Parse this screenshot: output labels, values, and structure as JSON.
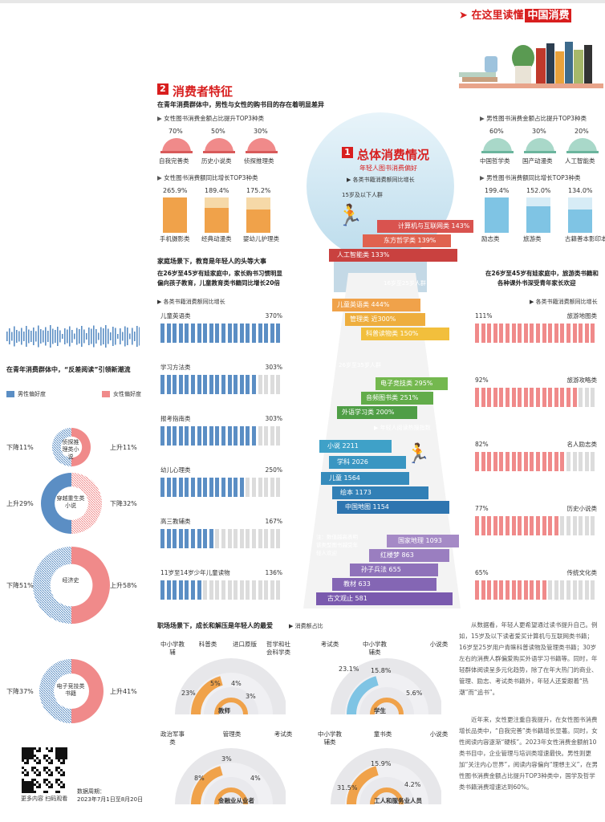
{
  "brand": {
    "prefix": "在这里读懂",
    "highlight": "中国消费"
  },
  "section1": {
    "num": "1",
    "title": "总体消费情况",
    "subtitle": "年轻人图书消费偏好",
    "legend": "各类书籍消费额同比增长"
  },
  "section2": {
    "num": "2",
    "title": "消费者特征",
    "intro": "在青年消费群体中，男性与女性的购书目的存在着明显差异"
  },
  "female_top3": {
    "title": "女性图书消费金额占比提升TOP3种类",
    "items": [
      {
        "pct": "70%",
        "label": "自我完善类"
      },
      {
        "pct": "50%",
        "label": "历史小说类"
      },
      {
        "pct": "30%",
        "label": "侦探推理类"
      }
    ]
  },
  "male_top3": {
    "title": "男性图书消费金额占比提升TOP3种类",
    "items": [
      {
        "pct": "60%",
        "label": "中国哲学类"
      },
      {
        "pct": "30%",
        "label": "国产动漫类"
      },
      {
        "pct": "20%",
        "label": "人工智能类"
      }
    ]
  },
  "female_growth": {
    "title": "女性图书消费额同比增长TOP3种类",
    "items": [
      {
        "pct": "265.9%",
        "label": "手机摄影类",
        "fill": 1.0
      },
      {
        "pct": "189.4%",
        "label": "经典动漫类",
        "fill": 0.71
      },
      {
        "pct": "175.2%",
        "label": "婴幼儿护理类",
        "fill": 0.66
      }
    ]
  },
  "male_growth": {
    "title": "男性图书消费额同比增长TOP3种类",
    "items": [
      {
        "pct": "199.4%",
        "label": "励志类",
        "fill": 1.0
      },
      {
        "pct": "152.0%",
        "label": "旅游类",
        "fill": 0.76
      },
      {
        "pct": "134.0%",
        "label": "古籍善本影印本",
        "fill": 0.67
      }
    ]
  },
  "family": {
    "line1": "家庭场景下，教育是年轻人的头等大事",
    "line2": "在26岁至45岁有娃家庭中，家长购书习惯明显",
    "line3": "偏向孩子教育，儿童教育类书籍同比增长20倍",
    "legend": "各类书籍消费额同比增长",
    "items": [
      {
        "label": "儿童英语类",
        "pct": "370%",
        "fill": 1.0
      },
      {
        "label": "学习方法类",
        "pct": "303%",
        "fill": 0.82
      },
      {
        "label": "报考指南类",
        "pct": "303%",
        "fill": 0.82
      },
      {
        "label": "幼儿心理类",
        "pct": "250%",
        "fill": 0.68
      },
      {
        "label": "高三教辅类",
        "pct": "167%",
        "fill": 0.45
      },
      {
        "label": "11岁至14岁少年儿童读物",
        "pct": "136%",
        "fill": 0.37
      }
    ]
  },
  "travel": {
    "line1": "在26岁至45岁有娃家庭中，旅游类书籍和",
    "line2": "各种课外书深受青年家长欢迎",
    "legend": "各类书籍消费额同比增长",
    "items": [
      {
        "label": "旅游地图类",
        "pct": "111%",
        "fill": 1.0
      },
      {
        "label": "旅游攻略类",
        "pct": "92%",
        "fill": 0.83
      },
      {
        "label": "名人励志类",
        "pct": "82%",
        "fill": 0.74
      },
      {
        "label": "历史小说类",
        "pct": "77%",
        "fill": 0.69
      },
      {
        "label": "传统文化类",
        "pct": "65%",
        "fill": 0.59
      }
    ]
  },
  "keyhole": {
    "age1": "15岁及以下人群",
    "top_steps": [
      {
        "label": "计算机与互联网类",
        "pct": "143%"
      },
      {
        "label": "东方哲学类",
        "pct": "139%"
      },
      {
        "label": "人工智能类",
        "pct": "133%"
      }
    ],
    "age2": "16岁至25岁人群",
    "mid_steps": [
      {
        "label": "儿童英语类",
        "pct": "444%"
      },
      {
        "label": "管理类",
        "pct": "近300%"
      },
      {
        "label": "科普读物类",
        "pct": "150%"
      }
    ],
    "age3": "26岁至35岁人群",
    "green_steps": [
      {
        "label": "电子竞技类",
        "pct": "295%"
      },
      {
        "label": "音频图书类",
        "pct": "251%"
      },
      {
        "label": "外语学习类",
        "pct": "200%"
      }
    ],
    "heat_legend": "年轻人阅读热搜指数",
    "blue_steps": [
      {
        "label": "小说",
        "val": "2211"
      },
      {
        "label": "学科",
        "val": "2026"
      },
      {
        "label": "儿童",
        "val": "1564"
      },
      {
        "label": "绘本",
        "val": "1173"
      },
      {
        "label": "中国地图",
        "val": "1154"
      }
    ],
    "note": "注：数值越高表明该类型图书越受年轻人欢迎",
    "purple_steps": [
      {
        "label": "国家地理",
        "val": "1093"
      },
      {
        "label": "红楼梦",
        "val": "863"
      },
      {
        "label": "孙子兵法",
        "val": "655"
      },
      {
        "label": "教材",
        "val": "633"
      },
      {
        "label": "古文观止",
        "val": "581"
      }
    ]
  },
  "reverse": {
    "title": "在青年消费群体中，“反差阅读”引领新潮流",
    "male_legend": "男性偏好度",
    "female_legend": "女性偏好度",
    "donuts": [
      {
        "center": "侦探推理类小说",
        "left": "下降11%",
        "right": "上升11%"
      },
      {
        "center": "穿越重生类小说",
        "left": "上升29%",
        "right": "下降32%"
      },
      {
        "center": "经济史",
        "left": "下降51%",
        "right": "上升58%"
      },
      {
        "center": "电子竞技类书籍",
        "left": "下降37%",
        "right": "上升41%"
      }
    ]
  },
  "workplace": {
    "title": "职场场景下，成长和解压是年轻人的最爱",
    "legend": "消费额占比",
    "groups": [
      {
        "name": "教师",
        "cats": [
          "中小学教辅",
          "科普类",
          "进口原版",
          "哲学和社会科学类"
        ],
        "vals": [
          "23%",
          "5%",
          "4%",
          "3%"
        ]
      },
      {
        "name": "学生",
        "cats": [
          "考试类",
          "中小学教辅类",
          "小说类"
        ],
        "vals": [
          "23.1%",
          "15.8%",
          "5.6%"
        ]
      },
      {
        "name": "金融业从业者",
        "cats": [
          "政治军事类",
          "管理类",
          "考试类"
        ],
        "vals": [
          "8%",
          "3%",
          "4%"
        ]
      },
      {
        "name": "工人和服务业人员",
        "cats": [
          "中小学教辅类",
          "童书类",
          "小说类"
        ],
        "vals": [
          "31.5%",
          "15.9%",
          "4.2%"
        ]
      }
    ]
  },
  "body_text": {
    "para1": "从数据看，年轻人更希望通过读书提升自己。例如，15岁及以下读者爱买计算机与互联网类书籍；16岁至25岁用户青睐科普读物及管理类书籍；30岁左右的消费人群偏爱购买外语学习书籍等。同时，年轻群体阅读呈多元化趋势，除了在年大热门的商业、管理、励志、考试类书籍外，年轻人还爱跟着“热潮”而“追书”。",
    "para2": "近年来，女性更注重自我提升，在女性图书消费增长品类中，“自我完善”类书籍增长显著。同时，女性阅读内容逐渐“硬核”。2023年女性消费金额前10类书目中，企业管理与培训类增速最快。男性则更加“关注内心世界”，阅读内容偏向“理想主义”，在男性图书消费金额占比提升TOP3种类中，国学及哲学类书籍消费增速达到60%。"
  },
  "footer": {
    "qr_caption": "更多内容 扫码观看",
    "period_label": "数据周期：",
    "period": "2023年7月1日至8月20日"
  },
  "colors": {
    "red": "#d81e1e",
    "pink": "#f08a8a",
    "blue": "#5b8ec4",
    "lightblue": "#cfe6f2",
    "orange": "#f0a24a",
    "grey": "#e3e3e3"
  }
}
